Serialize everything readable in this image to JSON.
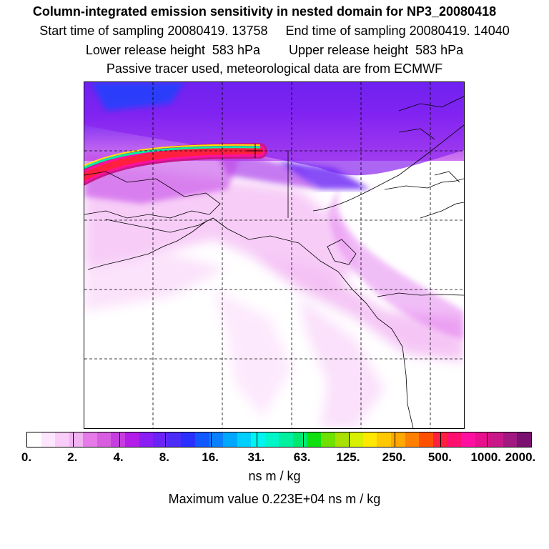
{
  "header": {
    "title": "Column-integrated emission sensitivity in nested domain for NP3_20080418",
    "start_label": "Start time of sampling 20080419. 13758",
    "end_label": "End time of sampling 20080419. 14040",
    "lower_label": "Lower release height  583 hPa",
    "upper_label": "Upper release height  583 hPa",
    "tracer_line": "Passive tracer used, meteorological data are from ECMWF"
  },
  "colorbar": {
    "colors": [
      "#ffffff",
      "#fde6fd",
      "#f9ccf9",
      "#f2b3f2",
      "#e57ae8",
      "#d85ee0",
      "#c63ee0",
      "#b21ee8",
      "#8a1ef5",
      "#6a24f5",
      "#4c2cf7",
      "#2a30ff",
      "#1058ff",
      "#0a80ff",
      "#00a8ff",
      "#00d0ff",
      "#00f5f0",
      "#00f5c8",
      "#00f0a0",
      "#00e870",
      "#10e010",
      "#70e000",
      "#a8e000",
      "#d8f000",
      "#ffe800",
      "#ffc800",
      "#ffa800",
      "#ff8000",
      "#ff5000",
      "#ff2040",
      "#ff1070",
      "#ff10a0",
      "#e8108c",
      "#c81888",
      "#a01880",
      "#7a1070"
    ],
    "tick_labels": [
      "0.",
      "2.",
      "4.",
      "8.",
      "16.",
      "31.",
      "63.",
      "125.",
      "250.",
      "500.",
      "1000.",
      "2000."
    ],
    "units": "ns m / kg"
  },
  "max_value_text": "Maximum value  0.223E+04 ns m / kg",
  "colors": {
    "frame": "#000000",
    "grid": "#000000",
    "coast": "#000000"
  }
}
